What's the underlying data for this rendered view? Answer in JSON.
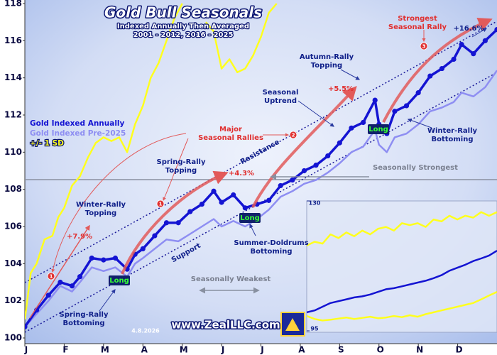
{
  "chart_data": {
    "type": "line",
    "title": "Gold Bull Seasonals",
    "subtitle": [
      "Indexed Annually Then Averaged",
      "2001 - 2012, 2016 - 2025"
    ],
    "xlim": [
      0,
      12
    ],
    "xticks": [
      {
        "value": 0,
        "label": "J"
      },
      {
        "value": 1,
        "label": "F"
      },
      {
        "value": 2,
        "label": "M"
      },
      {
        "value": 3,
        "label": "A"
      },
      {
        "value": 4,
        "label": "M"
      },
      {
        "value": 5,
        "label": "J"
      },
      {
        "value": 6,
        "label": "J"
      },
      {
        "value": 7,
        "label": "A"
      },
      {
        "value": 8,
        "label": "S"
      },
      {
        "value": 9,
        "label": "O"
      },
      {
        "value": 10,
        "label": "N"
      },
      {
        "value": 11,
        "label": "D"
      }
    ],
    "ylim": [
      100,
      118
    ],
    "yticks": [
      100,
      102,
      104,
      106,
      108,
      110,
      112,
      114,
      116,
      118
    ],
    "series": [
      {
        "name": "Gold Indexed Annually",
        "color": "#1414d2",
        "markers": true,
        "x": [
          0,
          0.3,
          0.6,
          0.9,
          1.2,
          1.4,
          1.7,
          2.0,
          2.3,
          2.6,
          2.8,
          3.0,
          3.3,
          3.6,
          3.9,
          4.2,
          4.5,
          4.8,
          5.0,
          5.3,
          5.6,
          5.9,
          6.2,
          6.5,
          6.8,
          7.1,
          7.4,
          7.7,
          8.0,
          8.3,
          8.6,
          8.9,
          9.0,
          9.2,
          9.4,
          9.7,
          10.0,
          10.3,
          10.6,
          10.9,
          11.1,
          11.4,
          11.7,
          12.0
        ],
        "values": [
          100.6,
          101.5,
          102.3,
          103.0,
          102.8,
          103.3,
          104.3,
          104.2,
          104.3,
          103.7,
          104.5,
          104.8,
          105.5,
          106.2,
          106.2,
          106.8,
          107.2,
          107.9,
          107.3,
          107.7,
          107.0,
          107.2,
          107.4,
          108.2,
          108.5,
          109.0,
          109.3,
          109.8,
          110.5,
          111.3,
          111.6,
          112.8,
          111.5,
          111.0,
          112.2,
          112.5,
          113.2,
          114.1,
          114.5,
          115.0,
          115.8,
          115.3,
          116.0,
          116.6
        ]
      },
      {
        "name": "Gold Indexed Pre-2025",
        "color": "#8e8ef2",
        "markers": false,
        "x": [
          0,
          0.3,
          0.6,
          0.9,
          1.2,
          1.4,
          1.7,
          2.0,
          2.3,
          2.6,
          2.8,
          3.0,
          3.3,
          3.6,
          3.9,
          4.2,
          4.5,
          4.8,
          5.0,
          5.3,
          5.6,
          5.9,
          6.2,
          6.5,
          6.8,
          7.1,
          7.4,
          7.7,
          8.0,
          8.3,
          8.6,
          8.9,
          9.0,
          9.2,
          9.4,
          9.7,
          10.0,
          10.3,
          10.6,
          10.9,
          11.1,
          11.4,
          11.7,
          12.0
        ],
        "values": [
          100.6,
          101.3,
          102.0,
          102.8,
          102.5,
          103.0,
          103.8,
          103.6,
          103.8,
          103.3,
          104.0,
          104.3,
          104.8,
          105.3,
          105.2,
          105.6,
          106.0,
          106.4,
          106.0,
          106.3,
          106.0,
          106.4,
          106.9,
          107.6,
          107.9,
          108.3,
          108.5,
          108.9,
          109.4,
          110.0,
          110.3,
          111.2,
          110.4,
          110.0,
          110.8,
          111.0,
          111.5,
          112.2,
          112.4,
          112.7,
          113.2,
          113.0,
          113.5,
          114.4
        ]
      },
      {
        "name": "+/- 1 SD",
        "color": "#ffff1e",
        "markers": false,
        "x": [
          0,
          0.15,
          0.3,
          0.5,
          0.7,
          0.85,
          1.0,
          1.2,
          1.4,
          1.6,
          1.8,
          2.0,
          2.2,
          2.4,
          2.6,
          2.8,
          3.0,
          3.2,
          3.4,
          3.6,
          3.8,
          4.0,
          4.3,
          4.6,
          4.8,
          5.0,
          5.2,
          5.4,
          5.6,
          5.8,
          6.0,
          6.2,
          6.4
        ],
        "values": [
          101.0,
          103.5,
          104.0,
          105.3,
          105.5,
          106.5,
          107.0,
          108.2,
          108.7,
          109.7,
          110.5,
          110.8,
          110.6,
          110.8,
          110.0,
          111.5,
          112.5,
          114.0,
          114.8,
          116.0,
          117.2,
          118.0,
          null,
          117.0,
          116.5,
          114.5,
          115.0,
          114.3,
          114.5,
          115.2,
          116.2,
          117.5,
          118.0
        ]
      }
    ],
    "inset": {
      "xlim": [
        0,
        12
      ],
      "ylim": [
        95,
        130
      ],
      "yticks": [
        95,
        130
      ],
      "x": [
        0,
        0.5,
        1,
        1.5,
        2,
        2.5,
        3,
        3.5,
        4,
        4.5,
        5,
        5.5,
        6,
        6.5,
        7,
        7.5,
        8,
        8.5,
        9,
        9.5,
        10,
        10.5,
        11,
        11.5,
        12
      ],
      "series": [
        {
          "color": "#ffff1e",
          "values": [
            118,
            119,
            118.5,
            121,
            120,
            121.5,
            120.5,
            122,
            121,
            122.5,
            123,
            122,
            124,
            123.5,
            124,
            123,
            125,
            124.5,
            126,
            125,
            126,
            125.5,
            127,
            126,
            127
          ]
        },
        {
          "color": "#1414d2",
          "values": [
            100,
            100.5,
            101.5,
            102.5,
            103,
            103.5,
            104,
            104.3,
            104.8,
            105.5,
            106.2,
            106.5,
            107,
            107.5,
            108,
            108.5,
            109.2,
            110,
            111.2,
            112,
            112.8,
            113.8,
            114.5,
            115.3,
            116.6
          ]
        },
        {
          "color": "#ffff1e",
          "values": [
            99,
            98.2,
            97.8,
            98,
            98.3,
            98.6,
            98.2,
            98.5,
            98.8,
            98.4,
            98.6,
            99,
            98.7,
            99.2,
            98.8,
            99.5,
            100,
            100.5,
            101,
            101.5,
            102,
            102.5,
            103.5,
            104.5,
            105.5
          ]
        }
      ]
    },
    "annotations": [
      {
        "lines": [
          "Winter-Rally",
          "Topping"
        ],
        "style": "navy"
      },
      {
        "lines": [
          "+7.9%"
        ],
        "style": "red"
      },
      {
        "lines": [
          "Spring-Rally",
          "Topping"
        ],
        "style": "navy"
      },
      {
        "lines": [
          "Major",
          "Seasonal Rallies"
        ],
        "style": "red"
      },
      {
        "lines": [
          "+4.3%"
        ],
        "style": "red"
      },
      {
        "lines": [
          "Resistance"
        ],
        "style": "navy"
      },
      {
        "lines": [
          "Support"
        ],
        "style": "navy"
      },
      {
        "lines": [
          "Seasonal",
          "Uptrend"
        ],
        "style": "navy"
      },
      {
        "lines": [
          "Autumn-Rally",
          "Topping"
        ],
        "style": "navy"
      },
      {
        "lines": [
          "+5.5%"
        ],
        "style": "red"
      },
      {
        "lines": [
          "Strongest",
          "Seasonal Rally"
        ],
        "style": "red"
      },
      {
        "lines": [
          "+16.6%"
        ],
        "style": "navy"
      },
      {
        "lines": [
          "Winter-Rally",
          "Bottoming"
        ],
        "style": "navy"
      },
      {
        "lines": [
          "Seasonally Strongest"
        ],
        "style": "gray"
      },
      {
        "lines": [
          "Summer-Doldrums",
          "Bottoming"
        ],
        "style": "navy"
      },
      {
        "lines": [
          "Seasonally Weakest"
        ],
        "style": "gray"
      },
      {
        "lines": [
          "Spring-Rally",
          "Bottoming"
        ],
        "style": "navy"
      }
    ],
    "signals": [
      "Long",
      "Long",
      "Long"
    ],
    "rally_markers": [
      "1",
      "1",
      "2",
      "3"
    ],
    "website": "www.ZealLLC.com",
    "date": "4.8.2026"
  }
}
